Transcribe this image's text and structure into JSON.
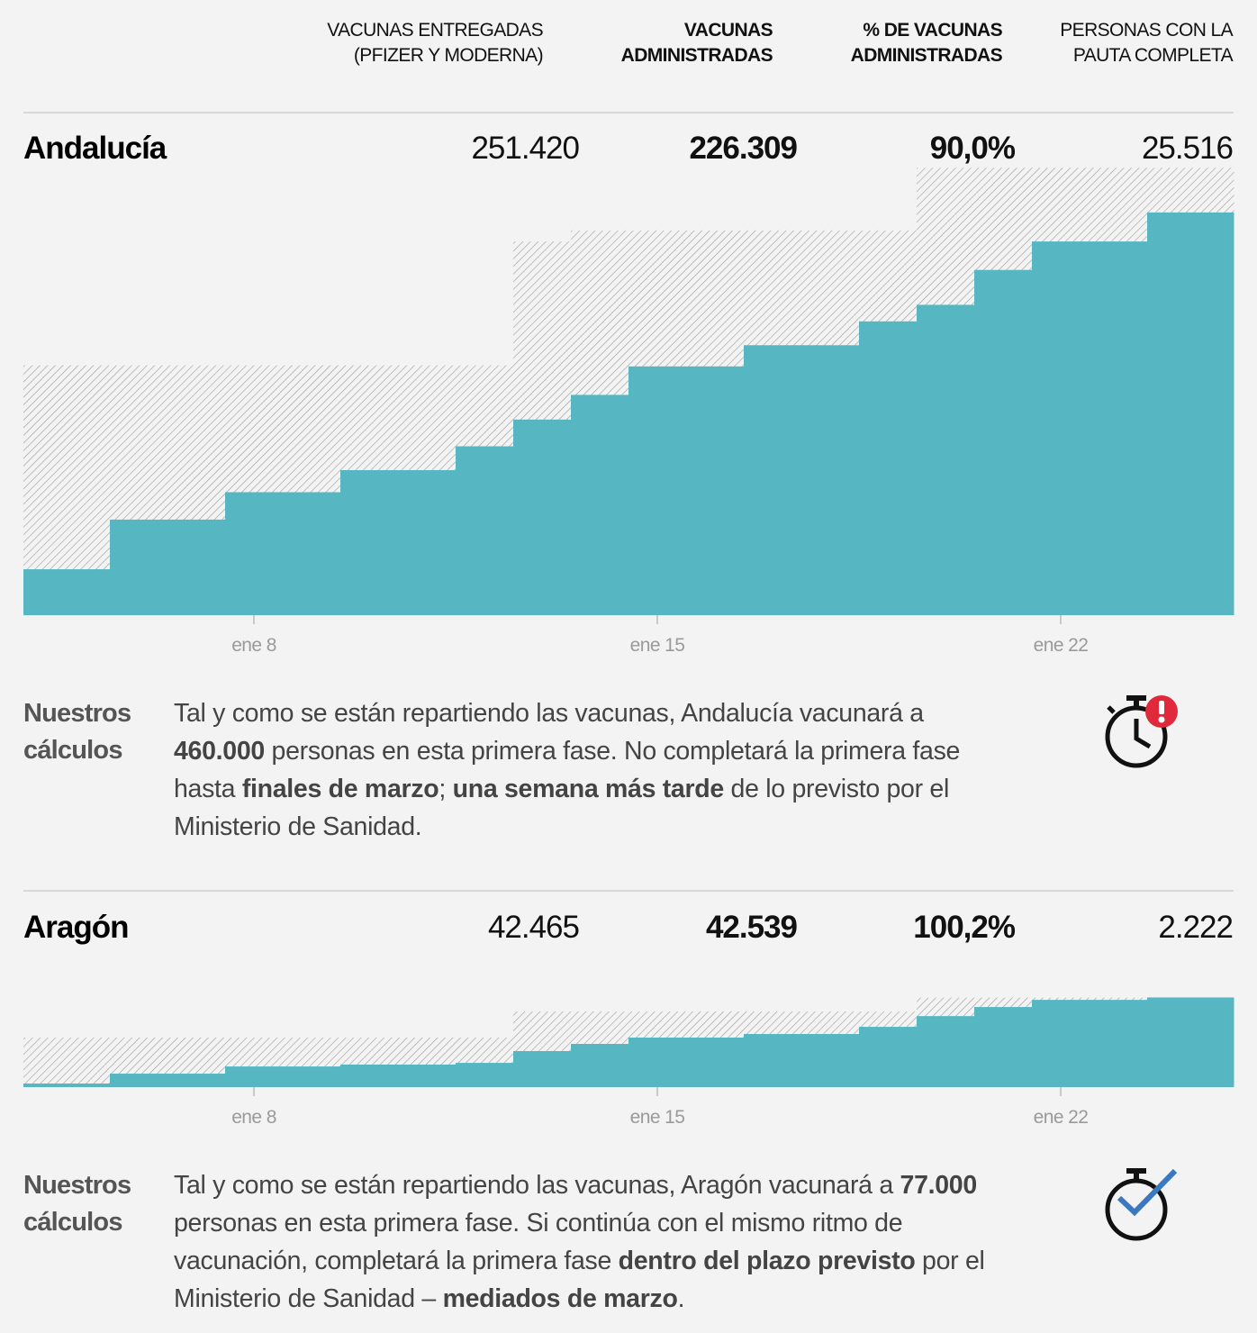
{
  "header": {
    "columns": [
      {
        "lines": [
          "VACUNAS ENTREGADAS",
          "(PFIZER Y MODERNA)"
        ],
        "bold": false
      },
      {
        "lines": [
          "VACUNAS",
          "ADMINISTRADAS"
        ],
        "bold": true
      },
      {
        "lines": [
          "% DE VACUNAS",
          "ADMINISTRADAS"
        ],
        "bold": true
      },
      {
        "lines": [
          "PERSONAS CON LA",
          "PAUTA COMPLETA"
        ],
        "bold": false
      }
    ]
  },
  "calc_label": [
    "Nuestros",
    "cálculos"
  ],
  "regions": [
    {
      "name": "Andalucía",
      "figures": [
        "251.420",
        "226.309",
        "90,0%",
        "25.516"
      ],
      "chart_data": {
        "type": "step",
        "xlim": [
          4,
          25
        ],
        "xticks": [
          {
            "value": 8,
            "label": "ene 8"
          },
          {
            "value": 15,
            "label": "ene 15"
          },
          {
            "value": 22,
            "label": "ene 22"
          }
        ],
        "ylim": [
          0,
          247000
        ],
        "series": [
          {
            "color": "#9a9a9a",
            "x": [
              4,
              12.5,
              13.5,
              19.5
            ],
            "values": [
              140400,
              210000,
              216200,
              251420
            ]
          },
          {
            "color": "#56b7c3",
            "x": [
              4,
              5.5,
              7.5,
              9.5,
              11.5,
              12.5,
              13.5,
              14.5,
              16.5,
              18.5,
              19.5,
              20.5,
              21.5,
              23.5
            ],
            "values": [
              25800,
              53700,
              69100,
              81500,
              94900,
              109900,
              123800,
              139800,
              151700,
              165100,
              174400,
              194000,
              210000,
              226309
            ]
          }
        ]
      },
      "calc_text": [
        {
          "text": "Tal y como se están repartiendo las vacunas, Andalucía vacunará a ",
          "bold": false
        },
        {
          "text": "460.000",
          "bold": true
        },
        {
          "text": " personas en esta primera fase. No completará la primera fase hasta ",
          "bold": false
        },
        {
          "text": "finales de marzo",
          "bold": true
        },
        {
          "text": "; ",
          "bold": false
        },
        {
          "text": "una semana más tarde",
          "bold": true
        },
        {
          "text": " de lo previsto por el Ministerio de Sanidad.",
          "bold": false
        }
      ]
    },
    {
      "name": "Aragón",
      "figures": [
        "42.465",
        "42.539",
        "100,2%",
        "2.222"
      ],
      "chart_data": {
        "type": "step",
        "xlim": [
          4,
          25
        ],
        "xticks": [
          {
            "value": 8,
            "label": "ene 8"
          },
          {
            "value": 15,
            "label": "ene 15"
          },
          {
            "value": 22,
            "label": "ene 22"
          }
        ],
        "ylim": [
          0,
          50000
        ],
        "series": [
          {
            "color": "#9a9a9a",
            "x": [
              4,
              12.5,
              19.5
            ],
            "values": [
              23500,
              35900,
              42465
            ]
          },
          {
            "color": "#56b7c3",
            "x": [
              4,
              5.5,
              7.5,
              9.5,
              11.5,
              12.5,
              13.5,
              14.5,
              16.5,
              18.5,
              19.5,
              20.5,
              21.5,
              23.5
            ],
            "values": [
              1700,
              6400,
              9800,
              10700,
              11500,
              17100,
              20500,
              23500,
              25200,
              28600,
              33700,
              38000,
              41400,
              42539
            ]
          }
        ]
      },
      "calc_text": [
        {
          "text": "Tal y como se están repartiendo las vacunas, Aragón vacunará a ",
          "bold": false
        },
        {
          "text": "77.000",
          "bold": true
        },
        {
          "text": " personas en esta primera fase. Si continúa con el mismo ritmo de vacunación, completará la primera fase ",
          "bold": false
        },
        {
          "text": "dentro del plazo previsto",
          "bold": true
        },
        {
          "text": " por el Ministerio de Sanidad  –  ",
          "bold": false
        },
        {
          "text": "mediados de marzo",
          "bold": true
        },
        {
          "text": ".",
          "bold": false
        }
      ]
    }
  ]
}
